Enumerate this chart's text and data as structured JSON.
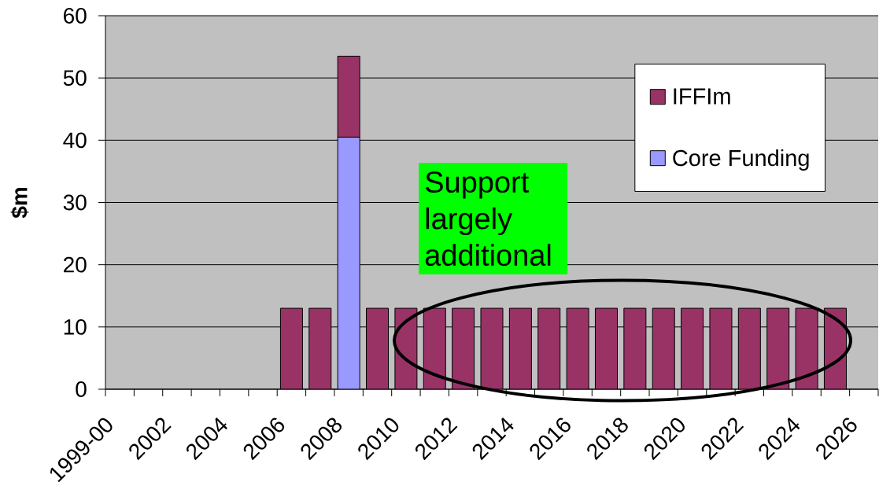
{
  "chart_data": {
    "type": "bar",
    "stacked": true,
    "ylabel": "$m",
    "categories": [
      "1999-00",
      null,
      "2002",
      null,
      "2004",
      null,
      "2006",
      null,
      "2008",
      null,
      "2010",
      null,
      "2012",
      null,
      "2014",
      null,
      "2016",
      null,
      "2018",
      null,
      "2020",
      null,
      "2022",
      null,
      "2024",
      null,
      "2026"
    ],
    "series": [
      {
        "name": "Core Funding",
        "color": "#9999ff",
        "values": [
          null,
          null,
          null,
          null,
          null,
          null,
          null,
          null,
          40.5,
          null,
          null,
          null,
          null,
          null,
          null,
          null,
          null,
          null,
          null,
          null,
          null,
          null,
          null,
          null,
          null,
          null,
          null
        ]
      },
      {
        "name": "IFFIm",
        "color": "#993366",
        "values": [
          null,
          null,
          null,
          null,
          null,
          null,
          13,
          13,
          13,
          13,
          13,
          13,
          13,
          13,
          13,
          13,
          13,
          13,
          13,
          13,
          13,
          13,
          13,
          13,
          13,
          13,
          null
        ]
      }
    ],
    "ylim": [
      0,
      60
    ],
    "yticks": [
      0,
      10,
      20,
      30,
      40,
      50,
      60
    ],
    "grid": "y",
    "legend": "top right",
    "annotations": [
      "Support largely additional"
    ]
  }
}
